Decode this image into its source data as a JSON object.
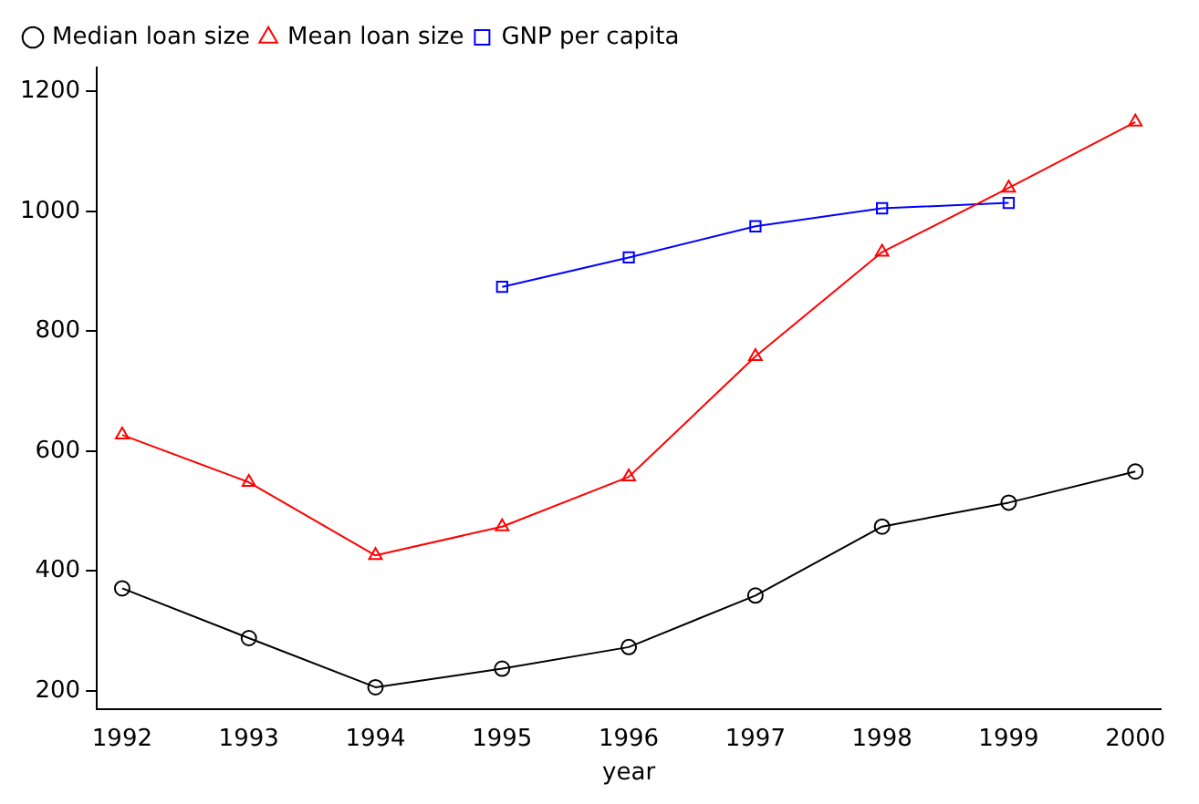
{
  "chart_data": {
    "type": "line",
    "xlabel": "year",
    "x": [
      1992,
      1993,
      1994,
      1995,
      1996,
      1997,
      1998,
      1999,
      2000
    ],
    "series": [
      {
        "name": "Median loan size",
        "color": "#000000",
        "marker": "circle",
        "values": [
          371,
          288,
          206,
          237,
          273,
          359,
          474,
          514,
          566
        ]
      },
      {
        "name": "Mean loan size",
        "color": "#ff0000",
        "marker": "triangle",
        "values": [
          627,
          548,
          426,
          474,
          557,
          758,
          932,
          1039,
          1149
        ]
      },
      {
        "name": "GNP per capita",
        "color": "#0000ff",
        "marker": "square",
        "x": [
          1995,
          1996,
          1997,
          1998,
          1999
        ],
        "values": [
          874,
          923,
          975,
          1005,
          1014
        ]
      }
    ],
    "xlim": [
      1991.8,
      2000.2
    ],
    "xticks": [
      1992,
      1993,
      1994,
      1995,
      1996,
      1997,
      1998,
      1999,
      2000
    ],
    "ylim": [
      170,
      1240
    ],
    "yticks": [
      200,
      400,
      600,
      800,
      1000,
      1200
    ],
    "grid": false,
    "legend": "top",
    "line_style": "solid"
  }
}
